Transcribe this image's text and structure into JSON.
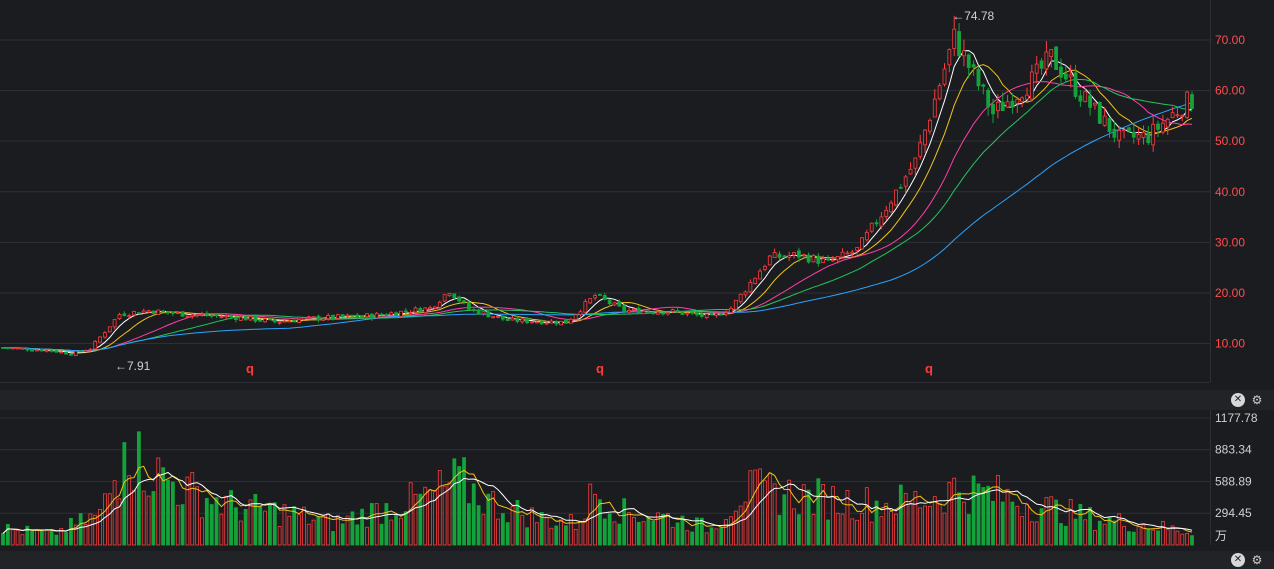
{
  "colors": {
    "background": "#1b1c20",
    "grid": "#2e3036",
    "up": "#ff3b3b",
    "down": "#13a33a",
    "axis_price_text": "#ff4d4d",
    "axis_volume_text": "#d0d0d0",
    "annotation_text": "#d0d0d0",
    "marker": "#ff3b3b",
    "ma5": "#ffffff",
    "ma10": "#f0c419",
    "ma20": "#ff3fa8",
    "ma30": "#22c55e",
    "ma60": "#2aa4ff"
  },
  "controls": {
    "close_symbol": "✕",
    "settings_symbol": "⚙",
    "icons": [
      "close-icon",
      "gear-icon"
    ]
  },
  "chart_data": [
    {
      "type": "candlestick",
      "title": "",
      "y_ticks": [
        "70.00",
        "60.00",
        "50.00",
        "40.00",
        "30.00",
        "20.00",
        "10.00"
      ],
      "ylim": [
        2.4,
        77.9
      ],
      "grid": true,
      "annotations": [
        {
          "text": "←74.78",
          "value": 74.78,
          "kind": "high"
        },
        {
          "text": "←7.91",
          "value": 7.91,
          "kind": "low"
        }
      ],
      "markers": [
        "q",
        "q",
        "q"
      ],
      "moving_average_colors": [
        "ma5",
        "ma10",
        "ma20",
        "ma30",
        "ma60"
      ],
      "sample_closes": [
        8.8,
        9.4,
        15.5,
        16.2,
        16.3,
        15.5,
        14.6,
        15.6,
        15.8,
        18.5,
        15.8,
        14.2,
        15.8,
        18.6,
        16.8,
        16.2,
        19.5,
        27.5,
        26.5,
        26.8,
        27.5,
        32.0,
        37.6,
        46.0,
        55.0,
        64.0,
        60.0,
        55.5,
        58.0,
        62.5,
        58.0,
        50.5,
        52.5,
        57.5
      ]
    },
    {
      "type": "bar",
      "title": "",
      "y_ticks": [
        "1177.78",
        "883.34",
        "588.89",
        "294.45"
      ],
      "unit": "万",
      "ylim": [
        0,
        1177.78
      ],
      "grid": true,
      "moving_average_colors": [
        "ma5",
        "ma10"
      ],
      "sample_volumes": [
        180,
        1000,
        1050,
        700,
        560,
        640,
        480,
        400,
        290,
        350,
        300,
        360,
        700,
        560,
        300,
        240,
        590,
        520,
        600,
        480,
        350,
        600,
        520,
        520,
        480,
        500,
        560,
        480,
        420,
        380,
        300,
        250,
        150
      ]
    }
  ]
}
